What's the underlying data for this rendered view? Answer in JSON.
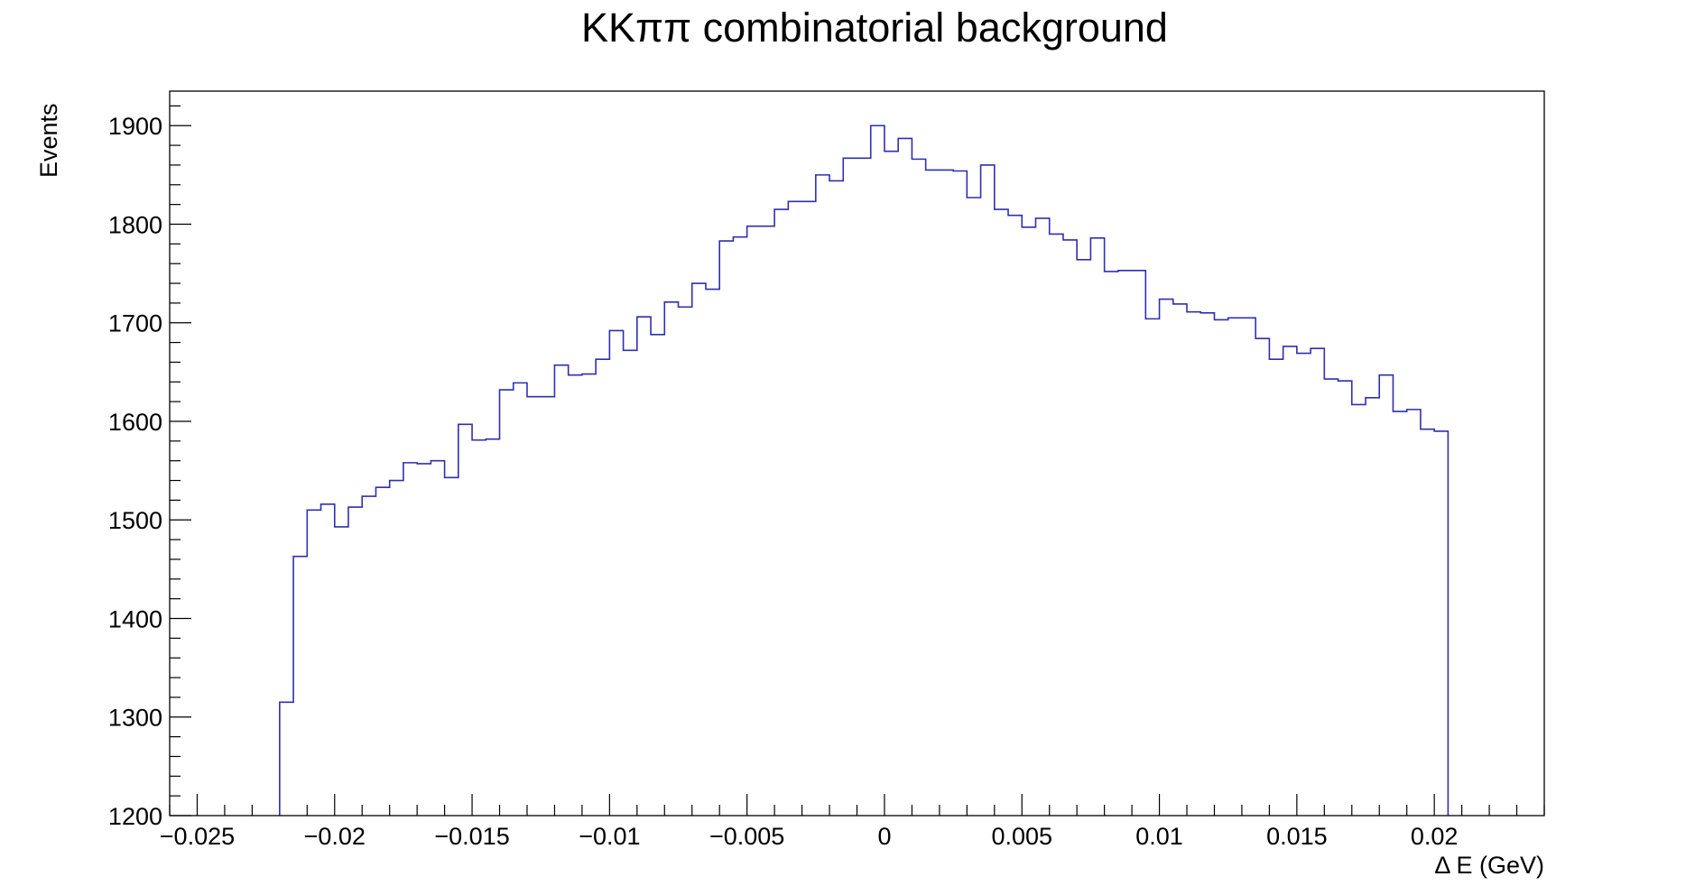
{
  "chart_data": {
    "type": "histogram",
    "title": "KKππ combinatorial background",
    "xlabel": "Δ E (GeV)",
    "ylabel": "Events",
    "xlim": [
      -0.026,
      0.024
    ],
    "ylim": [
      1200,
      1935
    ],
    "x_ticks": [
      -0.025,
      -0.02,
      -0.015,
      -0.01,
      -0.005,
      0,
      0.005,
      0.01,
      0.015,
      0.02
    ],
    "x_tick_labels": [
      "−0.025",
      "−0.02",
      "−0.015",
      "−0.01",
      "−0.005",
      "0",
      "0.005",
      "0.01",
      "0.015",
      "0.02"
    ],
    "y_ticks": [
      1200,
      1300,
      1400,
      1500,
      1600,
      1700,
      1800,
      1900
    ],
    "y_tick_labels": [
      "1200",
      "1300",
      "1400",
      "1500",
      "1600",
      "1700",
      "1800",
      "1900"
    ],
    "line_color": "#2f2fb0",
    "bin_edges": [
      -0.022,
      -0.0215,
      -0.021,
      -0.0205,
      -0.02,
      -0.0195,
      -0.019,
      -0.0185,
      -0.018,
      -0.0175,
      -0.017,
      -0.0165,
      -0.016,
      -0.0155,
      -0.015,
      -0.0145,
      -0.014,
      -0.0135,
      -0.013,
      -0.0125,
      -0.012,
      -0.0115,
      -0.011,
      -0.0105,
      -0.01,
      -0.0095,
      -0.009,
      -0.0085,
      -0.008,
      -0.0075,
      -0.007,
      -0.0065,
      -0.006,
      -0.0055,
      -0.005,
      -0.0045,
      -0.004,
      -0.0035,
      -0.003,
      -0.0025,
      -0.002,
      -0.0015,
      -0.001,
      -0.0005,
      0,
      0.0005,
      0.001,
      0.0015,
      0.002,
      0.0025,
      0.003,
      0.0035,
      0.004,
      0.0045,
      0.005,
      0.0055,
      0.006,
      0.0065,
      0.007,
      0.0075,
      0.008,
      0.0085,
      0.009,
      0.0095,
      0.01,
      0.0105,
      0.011,
      0.0115,
      0.012,
      0.0125,
      0.013,
      0.0135,
      0.014,
      0.0145,
      0.015,
      0.0155,
      0.016,
      0.0165,
      0.017,
      0.0175,
      0.018,
      0.0185,
      0.019,
      0.0195,
      0.02,
      0.0205
    ],
    "counts": [
      1315,
      1463,
      1510,
      1516,
      1493,
      1513,
      1524,
      1533,
      1540,
      1558,
      1557,
      1560,
      1543,
      1597,
      1581,
      1582,
      1632,
      1639,
      1625,
      1625,
      1657,
      1647,
      1648,
      1663,
      1692,
      1672,
      1706,
      1688,
      1721,
      1716,
      1740,
      1734,
      1783,
      1787,
      1798,
      1798,
      1815,
      1823,
      1823,
      1850,
      1844,
      1867,
      1867,
      1900,
      1874,
      1887,
      1866,
      1855,
      1855,
      1854,
      1827,
      1860,
      1815,
      1809,
      1797,
      1806,
      1790,
      1784,
      1764,
      1786,
      1752,
      1753,
      1753,
      1704,
      1724,
      1719,
      1711,
      1710,
      1703,
      1705,
      1705,
      1684,
      1663,
      1676,
      1669,
      1674,
      1643,
      1641,
      1617,
      1624,
      1647,
      1610,
      1612,
      1592,
      1590
    ],
    "grid": false,
    "legend": "none"
  }
}
